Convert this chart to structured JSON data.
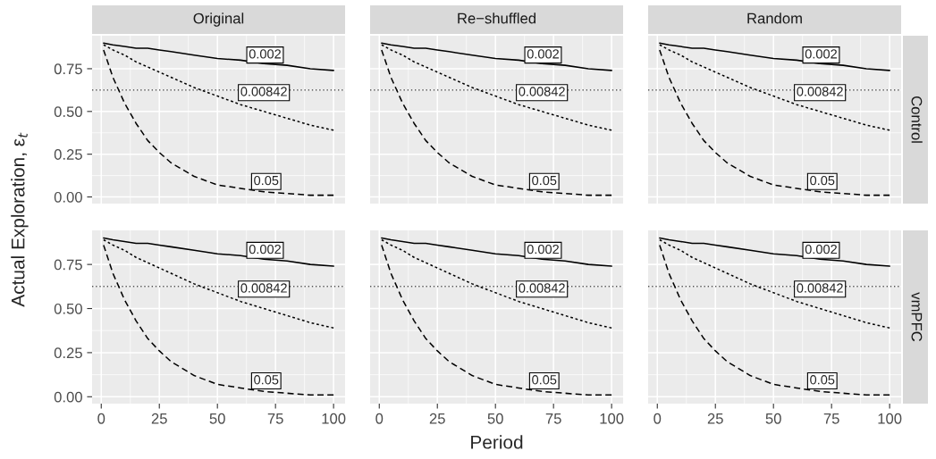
{
  "chart_data": [
    {
      "type": "line",
      "title": "Original",
      "ylabel": "Actual Exploration, ε$_{t}$",
      "tick_labels": "y",
      "grid": true,
      "xlim": [
        -3.95,
        104.95
      ],
      "ylim": [
        -0.039,
        0.943
      ],
      "xticks": [
        0,
        25,
        50,
        75,
        100
      ],
      "yticks": [
        {
          "value": 0,
          "label": "0.00"
        },
        {
          "value": 0.25,
          "label": "0.25"
        },
        {
          "value": 0.5,
          "label": "0.50"
        },
        {
          "value": 0.75,
          "label": "0.75"
        }
      ],
      "series": [
        {
          "color": "#000000",
          "line_style": "solid",
          "x": [
            1,
            5,
            10,
            15,
            20,
            25,
            30,
            40,
            50,
            60,
            70,
            80,
            90,
            100
          ],
          "values": [
            0.9,
            0.89,
            0.88,
            0.87,
            0.87,
            0.86,
            0.85,
            0.83,
            0.81,
            0.8,
            0.78,
            0.77,
            0.75,
            0.74
          ]
        },
        {
          "color": "#000000",
          "line_style": "dotted",
          "x": [
            1,
            5,
            10,
            15,
            20,
            25,
            30,
            40,
            50,
            60,
            70,
            80,
            90,
            100
          ],
          "values": [
            0.89,
            0.86,
            0.83,
            0.79,
            0.76,
            0.73,
            0.7,
            0.64,
            0.59,
            0.54,
            0.5,
            0.46,
            0.42,
            0.39
          ]
        },
        {
          "color": "#000000",
          "line_style": "dashed",
          "x": [
            1,
            5,
            10,
            15,
            20,
            25,
            30,
            40,
            50,
            60,
            70,
            80,
            90,
            100
          ],
          "values": [
            0.86,
            0.7,
            0.55,
            0.43,
            0.33,
            0.26,
            0.2,
            0.12,
            0.07,
            0.05,
            0.03,
            0.02,
            0.01,
            0.01
          ]
        }
      ],
      "ref_lines": [
        {
          "axis": "y",
          "value": 0.625,
          "color": "#000000",
          "line_style": "dotted"
        }
      ],
      "annotations": [
        {
          "text": "0.002",
          "x": 70.5,
          "y": 0.83
        },
        {
          "text": "0.00842",
          "x": 70,
          "y": 0.61
        },
        {
          "text": "0.05",
          "x": 71,
          "y": 0.09
        }
      ]
    },
    {
      "type": "line",
      "title": "Re−shuffled",
      "tick_labels": false,
      "grid": true,
      "xlim": [
        -3.95,
        104.95
      ],
      "ylim": [
        -0.039,
        0.943
      ],
      "xticks": [
        0,
        25,
        50,
        75,
        100
      ],
      "yticks": [
        0,
        0.25,
        0.5,
        0.75
      ],
      "series": [
        {
          "color": "#000000",
          "line_style": "solid",
          "x": [
            1,
            5,
            10,
            15,
            20,
            25,
            30,
            40,
            50,
            60,
            70,
            80,
            90,
            100
          ],
          "values": [
            0.9,
            0.89,
            0.88,
            0.87,
            0.87,
            0.86,
            0.85,
            0.83,
            0.81,
            0.8,
            0.78,
            0.77,
            0.75,
            0.74
          ]
        },
        {
          "color": "#000000",
          "line_style": "dotted",
          "x": [
            1,
            5,
            10,
            15,
            20,
            25,
            30,
            40,
            50,
            60,
            70,
            80,
            90,
            100
          ],
          "values": [
            0.89,
            0.86,
            0.83,
            0.79,
            0.76,
            0.73,
            0.7,
            0.64,
            0.59,
            0.54,
            0.5,
            0.46,
            0.42,
            0.39
          ]
        },
        {
          "color": "#000000",
          "line_style": "dashed",
          "x": [
            1,
            5,
            10,
            15,
            20,
            25,
            30,
            40,
            50,
            60,
            70,
            80,
            90,
            100
          ],
          "values": [
            0.86,
            0.7,
            0.55,
            0.43,
            0.33,
            0.26,
            0.2,
            0.12,
            0.07,
            0.05,
            0.03,
            0.02,
            0.01,
            0.01
          ]
        }
      ],
      "ref_lines": [
        {
          "axis": "y",
          "value": 0.625,
          "color": "#000000",
          "line_style": "dotted"
        }
      ],
      "annotations": [
        {
          "text": "0.002",
          "x": 70.5,
          "y": 0.83
        },
        {
          "text": "0.00842",
          "x": 70,
          "y": 0.61
        },
        {
          "text": "0.05",
          "x": 71,
          "y": 0.09
        }
      ]
    },
    {
      "type": "line",
      "title": "Random",
      "y2label": "Control",
      "tick_labels": false,
      "grid": true,
      "xlim": [
        -3.95,
        104.95
      ],
      "ylim": [
        -0.039,
        0.943
      ],
      "xticks": [
        0,
        25,
        50,
        75,
        100
      ],
      "yticks": [
        0,
        0.25,
        0.5,
        0.75
      ],
      "series": [
        {
          "color": "#000000",
          "line_style": "solid",
          "x": [
            1,
            5,
            10,
            15,
            20,
            25,
            30,
            40,
            50,
            60,
            70,
            80,
            90,
            100
          ],
          "values": [
            0.9,
            0.89,
            0.88,
            0.87,
            0.87,
            0.86,
            0.85,
            0.83,
            0.81,
            0.8,
            0.78,
            0.77,
            0.75,
            0.74
          ]
        },
        {
          "color": "#000000",
          "line_style": "dotted",
          "x": [
            1,
            5,
            10,
            15,
            20,
            25,
            30,
            40,
            50,
            60,
            70,
            80,
            90,
            100
          ],
          "values": [
            0.89,
            0.86,
            0.83,
            0.79,
            0.76,
            0.73,
            0.7,
            0.64,
            0.59,
            0.54,
            0.5,
            0.46,
            0.42,
            0.39
          ]
        },
        {
          "color": "#000000",
          "line_style": "dashed",
          "x": [
            1,
            5,
            10,
            15,
            20,
            25,
            30,
            40,
            50,
            60,
            70,
            80,
            90,
            100
          ],
          "values": [
            0.86,
            0.7,
            0.55,
            0.43,
            0.33,
            0.26,
            0.2,
            0.12,
            0.07,
            0.05,
            0.03,
            0.02,
            0.01,
            0.01
          ]
        }
      ],
      "ref_lines": [
        {
          "axis": "y",
          "value": 0.625,
          "color": "#000000",
          "line_style": "dotted"
        }
      ],
      "annotations": [
        {
          "text": "0.002",
          "x": 70.5,
          "y": 0.83
        },
        {
          "text": "0.00842",
          "x": 70,
          "y": 0.61
        },
        {
          "text": "0.05",
          "x": 71,
          "y": 0.09
        }
      ]
    },
    {
      "type": "line",
      "grid": true,
      "xlim": [
        -3.95,
        104.95
      ],
      "ylim": [
        -0.039,
        0.943
      ],
      "xticks": [
        0,
        25,
        50,
        75,
        100
      ],
      "yticks": [
        {
          "value": 0,
          "label": "0.00"
        },
        {
          "value": 0.25,
          "label": "0.25"
        },
        {
          "value": 0.5,
          "label": "0.50"
        },
        {
          "value": 0.75,
          "label": "0.75"
        }
      ],
      "series": [
        {
          "color": "#000000",
          "line_style": "solid",
          "x": [
            1,
            5,
            10,
            15,
            20,
            25,
            30,
            40,
            50,
            60,
            70,
            80,
            90,
            100
          ],
          "values": [
            0.9,
            0.89,
            0.88,
            0.87,
            0.87,
            0.86,
            0.85,
            0.83,
            0.81,
            0.8,
            0.78,
            0.77,
            0.75,
            0.74
          ]
        },
        {
          "color": "#000000",
          "line_style": "dotted",
          "x": [
            1,
            5,
            10,
            15,
            20,
            25,
            30,
            40,
            50,
            60,
            70,
            80,
            90,
            100
          ],
          "values": [
            0.89,
            0.86,
            0.83,
            0.79,
            0.76,
            0.73,
            0.7,
            0.64,
            0.59,
            0.54,
            0.5,
            0.46,
            0.42,
            0.39
          ]
        },
        {
          "color": "#000000",
          "line_style": "dashed",
          "x": [
            1,
            5,
            10,
            15,
            20,
            25,
            30,
            40,
            50,
            60,
            70,
            80,
            90,
            100
          ],
          "values": [
            0.86,
            0.7,
            0.55,
            0.43,
            0.33,
            0.26,
            0.2,
            0.12,
            0.07,
            0.05,
            0.03,
            0.02,
            0.01,
            0.01
          ]
        }
      ],
      "ref_lines": [
        {
          "axis": "y",
          "value": 0.625,
          "color": "#000000",
          "line_style": "dotted"
        }
      ],
      "annotations": [
        {
          "text": "0.002",
          "x": 70.5,
          "y": 0.83
        },
        {
          "text": "0.00842",
          "x": 70,
          "y": 0.61
        },
        {
          "text": "0.05",
          "x": 71,
          "y": 0.09
        }
      ]
    },
    {
      "type": "line",
      "xlabel": "Period",
      "tick_labels": "x",
      "grid": true,
      "xlim": [
        -3.95,
        104.95
      ],
      "ylim": [
        -0.039,
        0.943
      ],
      "xticks": [
        0,
        25,
        50,
        75,
        100
      ],
      "yticks": [
        0,
        0.25,
        0.5,
        0.75
      ],
      "series": [
        {
          "color": "#000000",
          "line_style": "solid",
          "x": [
            1,
            5,
            10,
            15,
            20,
            25,
            30,
            40,
            50,
            60,
            70,
            80,
            90,
            100
          ],
          "values": [
            0.9,
            0.89,
            0.88,
            0.87,
            0.87,
            0.86,
            0.85,
            0.83,
            0.81,
            0.8,
            0.78,
            0.77,
            0.75,
            0.74
          ]
        },
        {
          "color": "#000000",
          "line_style": "dotted",
          "x": [
            1,
            5,
            10,
            15,
            20,
            25,
            30,
            40,
            50,
            60,
            70,
            80,
            90,
            100
          ],
          "values": [
            0.89,
            0.86,
            0.83,
            0.79,
            0.76,
            0.73,
            0.7,
            0.64,
            0.59,
            0.54,
            0.5,
            0.46,
            0.42,
            0.39
          ]
        },
        {
          "color": "#000000",
          "line_style": "dashed",
          "x": [
            1,
            5,
            10,
            15,
            20,
            25,
            30,
            40,
            50,
            60,
            70,
            80,
            90,
            100
          ],
          "values": [
            0.86,
            0.7,
            0.55,
            0.43,
            0.33,
            0.26,
            0.2,
            0.12,
            0.07,
            0.05,
            0.03,
            0.02,
            0.01,
            0.01
          ]
        }
      ],
      "ref_lines": [
        {
          "axis": "y",
          "value": 0.625,
          "color": "#000000",
          "line_style": "dotted"
        }
      ],
      "annotations": [
        {
          "text": "0.002",
          "x": 70.5,
          "y": 0.83
        },
        {
          "text": "0.00842",
          "x": 70,
          "y": 0.61
        },
        {
          "text": "0.05",
          "x": 71,
          "y": 0.09
        }
      ]
    },
    {
      "type": "line",
      "y2label": "vmPFC",
      "tick_labels": "x",
      "grid": true,
      "xlim": [
        -3.95,
        104.95
      ],
      "ylim": [
        -0.039,
        0.943
      ],
      "xticks": [
        0,
        25,
        50,
        75,
        100
      ],
      "yticks": [
        0,
        0.25,
        0.5,
        0.75
      ],
      "series": [
        {
          "color": "#000000",
          "line_style": "solid",
          "x": [
            1,
            5,
            10,
            15,
            20,
            25,
            30,
            40,
            50,
            60,
            70,
            80,
            90,
            100
          ],
          "values": [
            0.9,
            0.89,
            0.88,
            0.87,
            0.87,
            0.86,
            0.85,
            0.83,
            0.81,
            0.8,
            0.78,
            0.77,
            0.75,
            0.74
          ]
        },
        {
          "color": "#000000",
          "line_style": "dotted",
          "x": [
            1,
            5,
            10,
            15,
            20,
            25,
            30,
            40,
            50,
            60,
            70,
            80,
            90,
            100
          ],
          "values": [
            0.89,
            0.86,
            0.83,
            0.79,
            0.76,
            0.73,
            0.7,
            0.64,
            0.59,
            0.54,
            0.5,
            0.46,
            0.42,
            0.39
          ]
        },
        {
          "color": "#000000",
          "line_style": "dashed",
          "x": [
            1,
            5,
            10,
            15,
            20,
            25,
            30,
            40,
            50,
            60,
            70,
            80,
            90,
            100
          ],
          "values": [
            0.86,
            0.7,
            0.55,
            0.43,
            0.33,
            0.26,
            0.2,
            0.12,
            0.07,
            0.05,
            0.03,
            0.02,
            0.01,
            0.01
          ]
        }
      ],
      "ref_lines": [
        {
          "axis": "y",
          "value": 0.625,
          "color": "#000000",
          "line_style": "dotted"
        }
      ],
      "annotations": [
        {
          "text": "0.002",
          "x": 70.5,
          "y": 0.83
        },
        {
          "text": "0.00842",
          "x": 70,
          "y": 0.61
        },
        {
          "text": "0.05",
          "x": 71,
          "y": 0.09
        }
      ]
    }
  ]
}
